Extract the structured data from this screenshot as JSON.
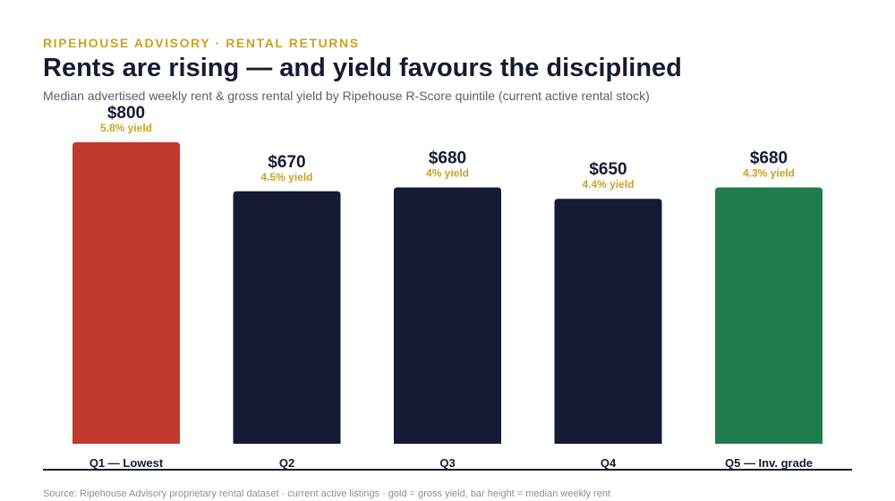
{
  "header": {
    "kicker": "RIPEHOUSE ADVISORY · RENTAL RETURNS",
    "title": "Rents are rising — and yield favours the disciplined",
    "subtitle": "Median advertised weekly rent & gross rental yield by Ripehouse R-Score quintile (current active rental stock)"
  },
  "footer": {
    "source": "Source: Ripehouse Advisory proprietary rental dataset · current active listings · gold = gross yield, bar height = median weekly rent"
  },
  "colors": {
    "gold": "#c9a227",
    "navy": "#161a33",
    "red": "#c0392b",
    "green": "#1e7d4c"
  },
  "chart_data": {
    "type": "bar",
    "categories": [
      "Q1 — Lowest",
      "Q2",
      "Q3",
      "Q4",
      "Q5 — Inv. grade"
    ],
    "values": [
      800,
      670,
      680,
      650,
      680
    ],
    "value_labels": [
      "$800",
      "$670",
      "$680",
      "$650",
      "$680"
    ],
    "yield_labels": [
      "5.8% yield",
      "4.5% yield",
      "4% yield",
      "4.4% yield",
      "4.3% yield"
    ],
    "yields": [
      5.8,
      4.5,
      4.0,
      4.4,
      4.3
    ],
    "bar_colors": [
      "#c0392b",
      "#161a33",
      "#161a33",
      "#161a33",
      "#1e7d4c"
    ],
    "ylim": [
      0,
      800
    ],
    "grid": false,
    "legend": "none"
  }
}
